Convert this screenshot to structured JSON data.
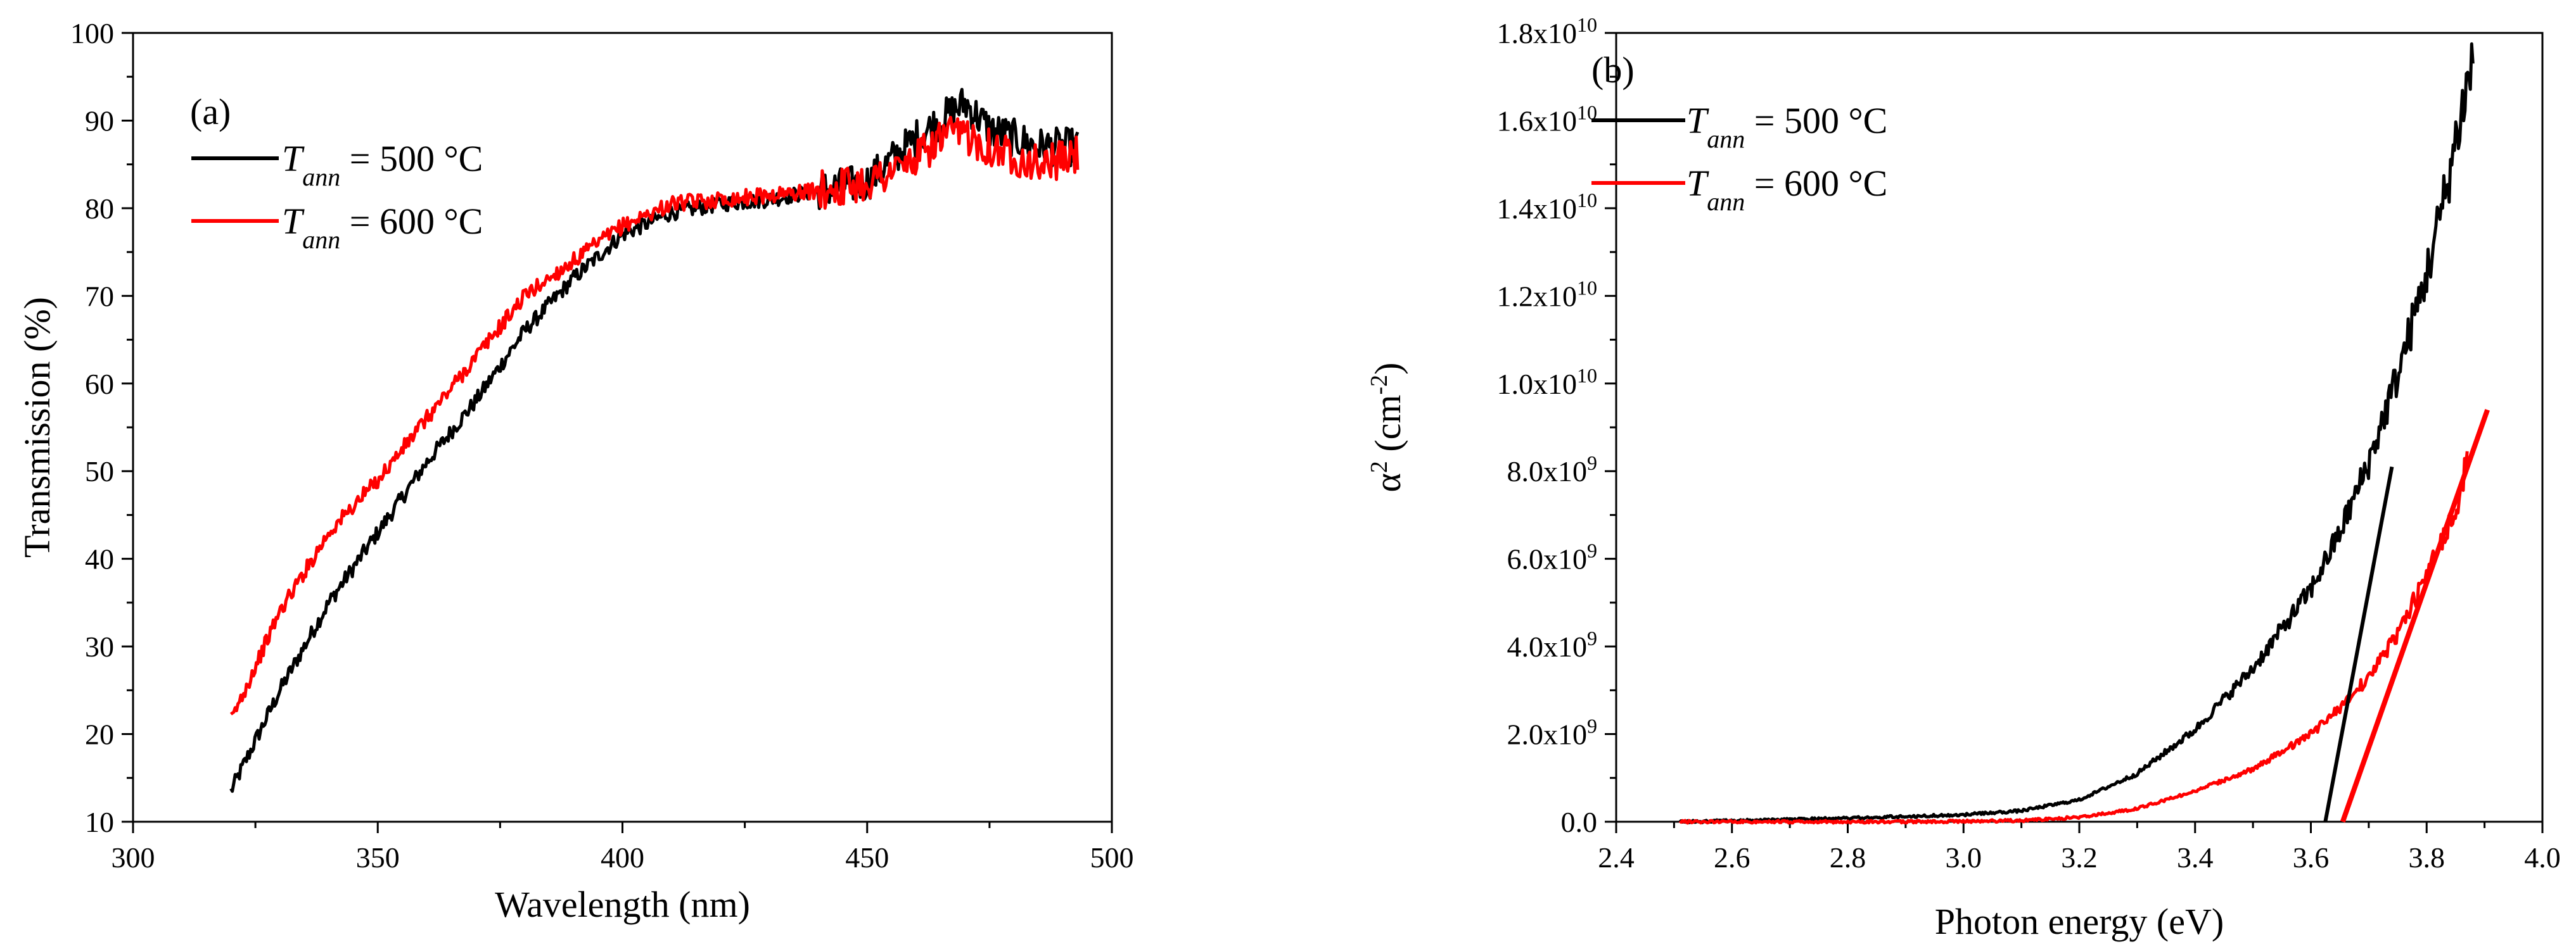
{
  "chart_data": [
    {
      "type": "line",
      "panel_label": "(a)",
      "xlabel": "Wavelength (nm)",
      "ylabel": "Transmission (%)",
      "xlim": [
        300,
        500
      ],
      "ylim": [
        10,
        100
      ],
      "x_ticks": [
        "300",
        "350",
        "400",
        "450",
        "500"
      ],
      "y_ticks": [
        "10",
        "20",
        "30",
        "40",
        "50",
        "60",
        "70",
        "80",
        "90",
        "100"
      ],
      "grid": false,
      "legend_position": "top-left",
      "series": [
        {
          "name": "T_ann = 500 °C",
          "legend": {
            "var": "T",
            "sub": "ann",
            "rest": " = 500 °C"
          },
          "color": "#000000",
          "x": [
            320,
            330,
            340,
            350,
            360,
            370,
            380,
            390,
            400,
            410,
            420,
            430,
            440,
            450,
            460,
            465,
            470,
            475,
            480,
            485,
            490,
            493
          ],
          "y": [
            13.5,
            25,
            35,
            43,
            51,
            58,
            66,
            72,
            77,
            79.5,
            80.5,
            81,
            82,
            83,
            88,
            90,
            92,
            89,
            88,
            87,
            87,
            87
          ]
        },
        {
          "name": "T_ann = 600 °C",
          "legend": {
            "var": "T",
            "sub": "ann",
            "rest": " = 600 °C"
          },
          "color": "#ff0000",
          "x": [
            320,
            330,
            340,
            350,
            360,
            370,
            380,
            390,
            400,
            410,
            420,
            430,
            440,
            450,
            460,
            465,
            470,
            475,
            480,
            485,
            490,
            493
          ],
          "y": [
            21.5,
            34,
            43,
            49,
            56,
            63,
            70,
            74,
            78,
            80.5,
            81,
            81.5,
            82,
            83,
            85.5,
            88,
            88.5,
            87,
            86,
            85,
            85.5,
            86
          ]
        }
      ]
    },
    {
      "type": "line",
      "panel_label": "(b)",
      "xlabel": "Photon energy  (eV)",
      "ylabel": "α² (cm⁻²)",
      "ylabel_parts": {
        "base": "α",
        "sup": "2",
        "mid": " (cm",
        "sup2": "-2",
        "end": ")"
      },
      "xlim": [
        2.4,
        4.0
      ],
      "ylim": [
        0,
        18000000000.0
      ],
      "x_ticks": [
        "2.4",
        "2.6",
        "2.8",
        "3.0",
        "3.2",
        "3.4",
        "3.6",
        "3.8",
        "4.0"
      ],
      "y_ticks": [
        {
          "m": "0.0",
          "e": ""
        },
        {
          "m": "2.0x10",
          "e": "9"
        },
        {
          "m": "4.0x10",
          "e": "9"
        },
        {
          "m": "6.0x10",
          "e": "9"
        },
        {
          "m": "8.0x10",
          "e": "9"
        },
        {
          "m": "1.0x10",
          "e": "10"
        },
        {
          "m": "1.2x10",
          "e": "10"
        },
        {
          "m": "1.4x10",
          "e": "10"
        },
        {
          "m": "1.6x10",
          "e": "10"
        },
        {
          "m": "1.8x10",
          "e": "10"
        }
      ],
      "grid": false,
      "legend_position": "top-left",
      "series": [
        {
          "name": "T_ann = 500 °C",
          "legend": {
            "var": "T",
            "sub": "ann",
            "rest": " = 500 °C"
          },
          "color": "#000000",
          "x": [
            2.51,
            2.6,
            2.7,
            2.8,
            2.9,
            3.0,
            3.1,
            3.2,
            3.3,
            3.4,
            3.5,
            3.6,
            3.65,
            3.7,
            3.75,
            3.8,
            3.83,
            3.86,
            3.88
          ],
          "y": [
            0,
            20000000.0,
            50000000.0,
            80000000.0,
            120000000.0,
            160000000.0,
            250000000.0,
            500000000.0,
            1100000000.0,
            2100000000.0,
            3500000000.0,
            5300000000.0,
            6600000000.0,
            8200000000.0,
            10200000000.0,
            12500000000.0,
            14200000000.0,
            16200000000.0,
            17400000000.0
          ]
        },
        {
          "name": "T_ann = 600 °C",
          "legend": {
            "var": "T",
            "sub": "ann",
            "rest": " = 600 °C"
          },
          "color": "#ff0000",
          "x": [
            2.51,
            2.6,
            2.7,
            2.8,
            2.9,
            3.0,
            3.1,
            3.2,
            3.3,
            3.4,
            3.5,
            3.6,
            3.65,
            3.7,
            3.75,
            3.8,
            3.85,
            3.87
          ],
          "y": [
            0,
            0,
            0,
            0,
            0,
            10000000.0,
            30000000.0,
            100000000.0,
            300000000.0,
            700000000.0,
            1200000000.0,
            2000000000.0,
            2600000000.0,
            3300000000.0,
            4300000000.0,
            5600000000.0,
            7100000000.0,
            8300000000.0
          ]
        }
      ],
      "fit_lines": [
        {
          "color": "#000000",
          "x": [
            3.625,
            3.74
          ],
          "y": [
            0,
            8100000000.0
          ]
        },
        {
          "color": "#ff0000",
          "x": [
            3.655,
            3.905
          ],
          "y": [
            0,
            9400000000.0
          ]
        }
      ]
    }
  ]
}
